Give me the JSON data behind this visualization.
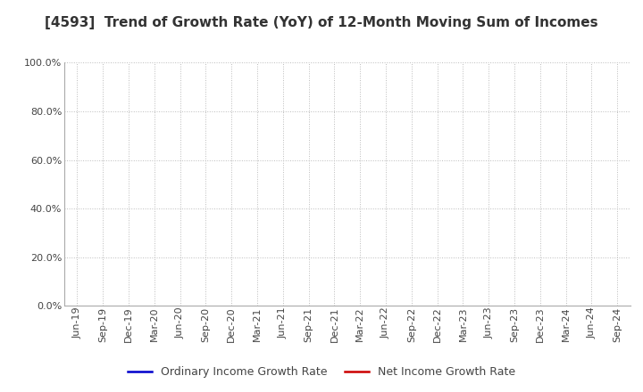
{
  "title": "[4593]  Trend of Growth Rate (YoY) of 12-Month Moving Sum of Incomes",
  "ylim": [
    0.0,
    1.0
  ],
  "yticks": [
    0.0,
    0.2,
    0.4,
    0.6,
    0.8,
    1.0
  ],
  "ytick_labels": [
    "0.0%",
    "20.0%",
    "40.0%",
    "60.0%",
    "80.0%",
    "100.0%"
  ],
  "x_labels": [
    "Jun-19",
    "Sep-19",
    "Dec-19",
    "Mar-20",
    "Jun-20",
    "Sep-20",
    "Dec-20",
    "Mar-21",
    "Jun-21",
    "Sep-21",
    "Dec-21",
    "Mar-22",
    "Jun-22",
    "Sep-22",
    "Dec-22",
    "Mar-23",
    "Jun-23",
    "Sep-23",
    "Dec-23",
    "Mar-24",
    "Jun-24",
    "Sep-24"
  ],
  "ordinary_income_color": "#0000CC",
  "net_income_color": "#CC0000",
  "legend_labels": [
    "Ordinary Income Growth Rate",
    "Net Income Growth Rate"
  ],
  "background_color": "#FFFFFF",
  "plot_bg_color": "#FFFFFF",
  "grid_color": "#BBBBBB",
  "title_fontsize": 11,
  "tick_fontsize": 8,
  "legend_fontsize": 9,
  "title_color": "#333333",
  "tick_color": "#444444",
  "spine_color": "#AAAAAA"
}
